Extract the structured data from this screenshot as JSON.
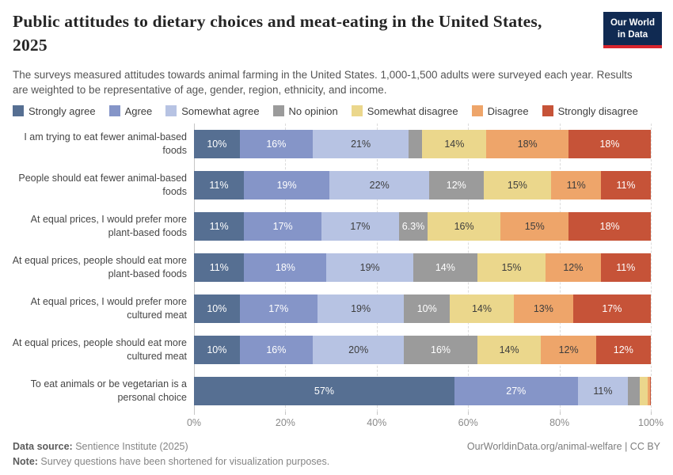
{
  "header": {
    "title": "Public attitudes to dietary choices and meat-eating in the United States, 2025",
    "logo": {
      "line1": "Our World",
      "line2": "in Data",
      "bg_color": "#102A52",
      "stripe_color": "#D8252E"
    }
  },
  "subtitle": "The surveys measured attitudes towards animal farming in the United States. 1,000-1,500 adults were surveyed each year. Results are weighted to be representative of age, gender, region, ethnicity, and income.",
  "chart_data": {
    "type": "bar",
    "orientation": "horizontal-stacked",
    "unit": "%",
    "title": "Public attitudes to dietary choices and meat-eating in the United States, 2025",
    "grid": true,
    "legend_position": "top",
    "xlim": [
      0,
      100
    ],
    "xticks": [
      "0%",
      "20%",
      "40%",
      "60%",
      "80%",
      "100%"
    ],
    "categories": [
      "I am trying to eat fewer animal-based foods",
      "People should eat fewer animal-based foods",
      "At equal prices, I would prefer more plant-based foods",
      "At equal prices, people should eat more plant-based foods",
      "At equal prices, I would prefer more cultured meat",
      "At equal prices, people should eat more cultured meat",
      "To eat animals or be vegetarian is a personal choice"
    ],
    "series": [
      {
        "name": "Strongly agree",
        "color": "#566F92",
        "text_color": "#ffffff",
        "values": [
          10,
          11,
          11,
          11,
          10,
          10,
          57
        ],
        "labels": [
          "10%",
          "11%",
          "11%",
          "11%",
          "10%",
          "10%",
          "57%"
        ]
      },
      {
        "name": "Agree",
        "color": "#8595C8",
        "text_color": "#ffffff",
        "values": [
          16,
          19,
          17,
          18,
          17,
          16,
          27
        ],
        "labels": [
          "16%",
          "19%",
          "17%",
          "18%",
          "17%",
          "16%",
          "27%"
        ]
      },
      {
        "name": "Somewhat agree",
        "color": "#B7C3E3",
        "text_color": "#3d3d3d",
        "values": [
          21,
          22,
          17,
          19,
          19,
          20,
          11
        ],
        "labels": [
          "21%",
          "22%",
          "17%",
          "19%",
          "19%",
          "20%",
          "11%"
        ]
      },
      {
        "name": "No opinion",
        "color": "#9B9B9B",
        "text_color": "#ffffff",
        "values": [
          3,
          12,
          6.3,
          14,
          10,
          16,
          2.5
        ],
        "labels": [
          "",
          "12%",
          "6.3%",
          "14%",
          "10%",
          "16%",
          ""
        ]
      },
      {
        "name": "Somewhat disagree",
        "color": "#EBD78C",
        "text_color": "#3d3d3d",
        "values": [
          14,
          15,
          16,
          15,
          14,
          14,
          1.8
        ],
        "labels": [
          "14%",
          "15%",
          "16%",
          "15%",
          "14%",
          "14%",
          ""
        ]
      },
      {
        "name": "Disagree",
        "color": "#EEA56A",
        "text_color": "#3d3d3d",
        "values": [
          18,
          11,
          15,
          12,
          13,
          12,
          0.5
        ],
        "labels": [
          "18%",
          "11%",
          "15%",
          "12%",
          "13%",
          "12%",
          ""
        ]
      },
      {
        "name": "Strongly disagree",
        "color": "#C65338",
        "text_color": "#ffffff",
        "values": [
          18,
          11,
          18,
          11,
          17,
          12,
          0.2
        ],
        "labels": [
          "18%",
          "11%",
          "18%",
          "11%",
          "17%",
          "12%",
          ""
        ]
      }
    ]
  },
  "footer": {
    "datasource_label": "Data source: ",
    "datasource_value": "Sentience Institute (2025)",
    "note_label": "Note: ",
    "note_value": "Survey questions have been shortened for visualization purposes.",
    "link": "OurWorldinData.org/animal-welfare | CC BY"
  }
}
